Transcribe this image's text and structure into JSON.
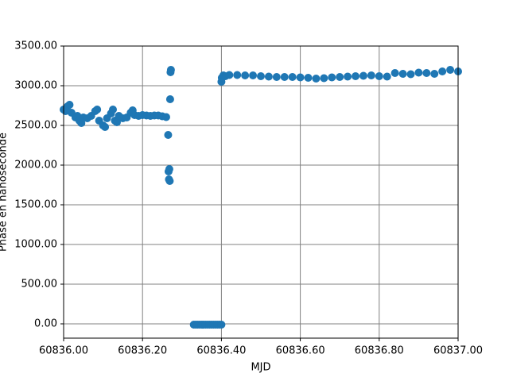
{
  "chart_data": {
    "type": "scatter",
    "xlabel": "MJD",
    "ylabel": "Phase en nanoseconde",
    "color": "#1f77b4",
    "grid": true,
    "xlim": [
      60836.0,
      60837.0
    ],
    "xticks": [
      {
        "value": 60836.0,
        "label": "60836.00"
      },
      {
        "value": 60836.2,
        "label": "60836.20"
      },
      {
        "value": 60836.4,
        "label": "60836.40"
      },
      {
        "value": 60836.6,
        "label": "60836.60"
      },
      {
        "value": 60836.8,
        "label": "60836.80"
      },
      {
        "value": 60837.0,
        "label": "60837.00"
      }
    ],
    "ylim": [
      -180,
      3500
    ],
    "yticks": [
      {
        "value": 0,
        "label": "0.00"
      },
      {
        "value": 500,
        "label": "500.00"
      },
      {
        "value": 1000,
        "label": "1000.00"
      },
      {
        "value": 1500,
        "label": "1500.00"
      },
      {
        "value": 2000,
        "label": "2000.00"
      },
      {
        "value": 2500,
        "label": "2500.00"
      },
      {
        "value": 3000,
        "label": "3000.00"
      },
      {
        "value": 3500,
        "label": "3500.00"
      }
    ],
    "x": [
      60836.0,
      60836.005,
      60836.01,
      60836.015,
      60836.02,
      60836.03,
      60836.035,
      60836.04,
      60836.045,
      60836.05,
      60836.06,
      60836.07,
      60836.08,
      60836.085,
      60836.09,
      60836.1,
      60836.105,
      60836.11,
      60836.12,
      60836.125,
      60836.13,
      60836.135,
      60836.14,
      60836.15,
      60836.16,
      60836.17,
      60836.175,
      60836.18,
      60836.19,
      60836.2,
      60836.21,
      60836.22,
      60836.23,
      60836.24,
      60836.25,
      60836.26,
      60836.265,
      60836.266,
      60836.267,
      60836.268,
      60836.269,
      60836.27,
      60836.271,
      60836.272,
      60836.33,
      60836.335,
      60836.34,
      60836.345,
      60836.35,
      60836.355,
      60836.36,
      60836.365,
      60836.37,
      60836.375,
      60836.38,
      60836.385,
      60836.39,
      60836.395,
      60836.4,
      60836.4,
      60836.401,
      60836.405,
      60836.41,
      60836.42,
      60836.44,
      60836.46,
      60836.48,
      60836.5,
      60836.52,
      60836.54,
      60836.56,
      60836.58,
      60836.6,
      60836.62,
      60836.64,
      60836.66,
      60836.68,
      60836.7,
      60836.72,
      60836.74,
      60836.76,
      60836.78,
      60836.8,
      60836.82,
      60836.84,
      60836.86,
      60836.88,
      60836.9,
      60836.92,
      60836.94,
      60836.96,
      60836.98,
      60837.0
    ],
    "values": [
      2700,
      2680,
      2740,
      2760,
      2660,
      2600,
      2620,
      2560,
      2530,
      2600,
      2590,
      2620,
      2680,
      2700,
      2560,
      2500,
      2480,
      2590,
      2650,
      2700,
      2560,
      2540,
      2620,
      2590,
      2600,
      2660,
      2690,
      2630,
      2620,
      2630,
      2625,
      2620,
      2625,
      2625,
      2615,
      2605,
      2380,
      1920,
      1820,
      1950,
      1800,
      2830,
      3170,
      3200,
      -10,
      -10,
      -10,
      -10,
      -10,
      -10,
      -10,
      -10,
      -10,
      -10,
      -10,
      -10,
      -10,
      -10,
      -10,
      3050,
      3100,
      3130,
      3120,
      3135,
      3135,
      3130,
      3130,
      3120,
      3115,
      3110,
      3110,
      3110,
      3105,
      3100,
      3090,
      3095,
      3105,
      3110,
      3115,
      3120,
      3125,
      3130,
      3120,
      3115,
      3160,
      3150,
      3145,
      3165,
      3160,
      3150,
      3180,
      3200,
      3180
    ]
  }
}
